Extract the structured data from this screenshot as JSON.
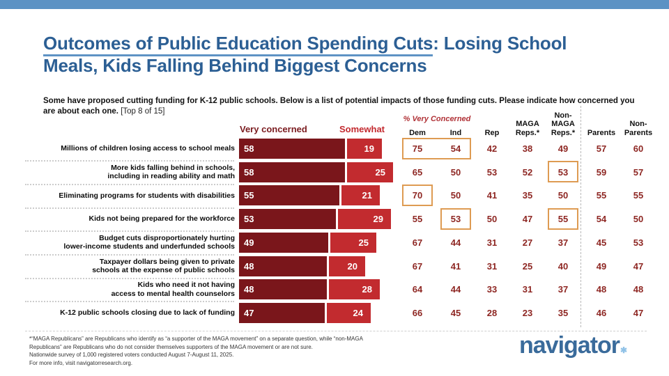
{
  "header": {
    "title_underlined": "Outcomes of Public Education Spending Cuts",
    "title_rest_line1": ": Losing School",
    "title_line2": "Meals, Kids Falling Behind Biggest Concerns",
    "subtitle_bold": "Some have proposed cutting funding for K-12 public schools. Below is a list of potential impacts of those funding cuts. Please indicate how concerned you are about each one.",
    "subtitle_note": " [Top 8 of 15]"
  },
  "chart_data": {
    "type": "bar",
    "orientation": "horizontal",
    "stacked": true,
    "xlim": [
      0,
      100
    ],
    "legend": [
      {
        "label": "Very concerned",
        "color": "#7a161b"
      },
      {
        "label": "Somewhat",
        "color": "#c22b2f"
      }
    ],
    "table_group_header": "% Very Concerned",
    "table_columns_lines": [
      [
        "Dem"
      ],
      [
        "Ind"
      ],
      [
        "Rep"
      ],
      [
        "MAGA",
        "Reps.*"
      ],
      [
        "Non-",
        "MAGA",
        "Reps.*"
      ],
      [
        "Parents"
      ],
      [
        "Non-",
        "Parents"
      ]
    ],
    "rows": [
      {
        "label_lines": [
          "Millions of children losing access to school meals"
        ],
        "very": 58,
        "somewhat": 19,
        "table": [
          75,
          54,
          42,
          38,
          49,
          57,
          60
        ],
        "highlights": [
          [
            0,
            1
          ]
        ]
      },
      {
        "label_lines": [
          "More kids falling behind in schools,",
          "including in reading ability and math"
        ],
        "very": 58,
        "somewhat": 25,
        "table": [
          65,
          50,
          53,
          52,
          53,
          59,
          57
        ],
        "highlights": [
          [
            4,
            4
          ]
        ]
      },
      {
        "label_lines": [
          "Eliminating programs for students with disabilities"
        ],
        "very": 55,
        "somewhat": 21,
        "table": [
          70,
          50,
          41,
          35,
          50,
          55,
          55
        ],
        "highlights": [
          [
            0,
            0
          ]
        ]
      },
      {
        "label_lines": [
          "Kids not being prepared for the workforce"
        ],
        "very": 53,
        "somewhat": 29,
        "table": [
          55,
          53,
          50,
          47,
          55,
          54,
          50
        ],
        "highlights": [
          [
            1,
            1
          ],
          [
            4,
            4
          ]
        ]
      },
      {
        "label_lines": [
          "Budget cuts disproportionately hurting",
          "lower-income students and underfunded schools"
        ],
        "very": 49,
        "somewhat": 25,
        "table": [
          67,
          44,
          31,
          27,
          37,
          45,
          53
        ],
        "highlights": []
      },
      {
        "label_lines": [
          "Taxpayer dollars being given to private",
          "schools at the expense of public schools"
        ],
        "very": 48,
        "somewhat": 20,
        "table": [
          67,
          41,
          31,
          25,
          40,
          49,
          47
        ],
        "highlights": []
      },
      {
        "label_lines": [
          "Kids who need it not having",
          "access to mental health counselors"
        ],
        "very": 48,
        "somewhat": 28,
        "table": [
          64,
          44,
          33,
          31,
          37,
          48,
          48
        ],
        "highlights": []
      },
      {
        "label_lines": [
          "K-12 public schools closing due to lack of funding"
        ],
        "very": 47,
        "somewhat": 24,
        "table": [
          66,
          45,
          28,
          23,
          35,
          46,
          47
        ],
        "highlights": []
      }
    ]
  },
  "footer": {
    "lines": [
      "*“MAGA Republicans” are Republicans who identify as “a supporter of the MAGA movement” on a separate question, while “non-MAGA",
      "Republicans” are Republicans who do not consider themselves supporters of the MAGA movement or are not sure.",
      "Nationwide survey of 1,000 registered voters conducted August 7-August 11, 2025.",
      "For more info, visit navigatorresearch.org."
    ]
  },
  "logo": {
    "text": "navigator",
    "mark": "✱"
  },
  "colors": {
    "top_bar": "#5c92c4",
    "title_blue": "#2c5f94",
    "title_underline": "#5e93c4",
    "very_concerned_bar": "#7a161b",
    "somewhat_bar": "#c22b2f",
    "table_number": "#8e2723",
    "highlight_border": "#de9b52",
    "logo_blue": "#3a6b9b",
    "logo_star": "#90c2e7"
  }
}
